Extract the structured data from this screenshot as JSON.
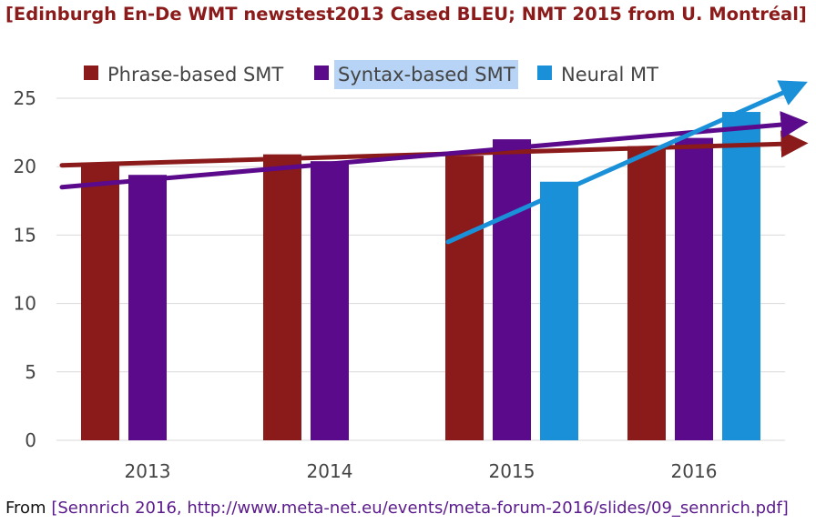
{
  "title": "[Edinburgh En-De WMT newstest2013 Cased BLEU; NMT 2015 from U. Montréal]",
  "footer": {
    "prefix": "From ",
    "source": "[Sennrich 2016, http://www.meta-net.eu/events/meta-forum-2016/slides/09_sennrich.pdf]"
  },
  "chart_data": {
    "type": "bar",
    "categories": [
      "2013",
      "2014",
      "2015",
      "2016"
    ],
    "series": [
      {
        "name": "Phrase-based SMT",
        "color": "#8b1a1a",
        "values": [
          20.3,
          20.9,
          20.8,
          21.5
        ]
      },
      {
        "name": "Syntax-based SMT",
        "color": "#5a0a8a",
        "values": [
          19.4,
          20.4,
          22.0,
          22.1
        ]
      },
      {
        "name": "Neural MT",
        "color": "#1a90d8",
        "values": [
          null,
          null,
          18.9,
          24.0
        ]
      }
    ],
    "ylim": [
      0,
      25
    ],
    "yticks": [
      "0",
      "5",
      "10",
      "15",
      "20",
      "25"
    ],
    "grid": true,
    "legend": "top",
    "highlighted_legend_entry": "Syntax-based SMT",
    "trend_arrows": [
      {
        "series": "Phrase-based SMT",
        "from": [
          2013,
          20.1
        ],
        "to": [
          2016,
          21.7
        ]
      },
      {
        "series": "Syntax-based SMT",
        "from": [
          2013,
          18.5
        ],
        "to": [
          2016,
          23.2
        ]
      },
      {
        "series": "Neural MT",
        "from": [
          2015,
          14.5
        ],
        "to": [
          2016,
          26.0
        ]
      }
    ]
  }
}
